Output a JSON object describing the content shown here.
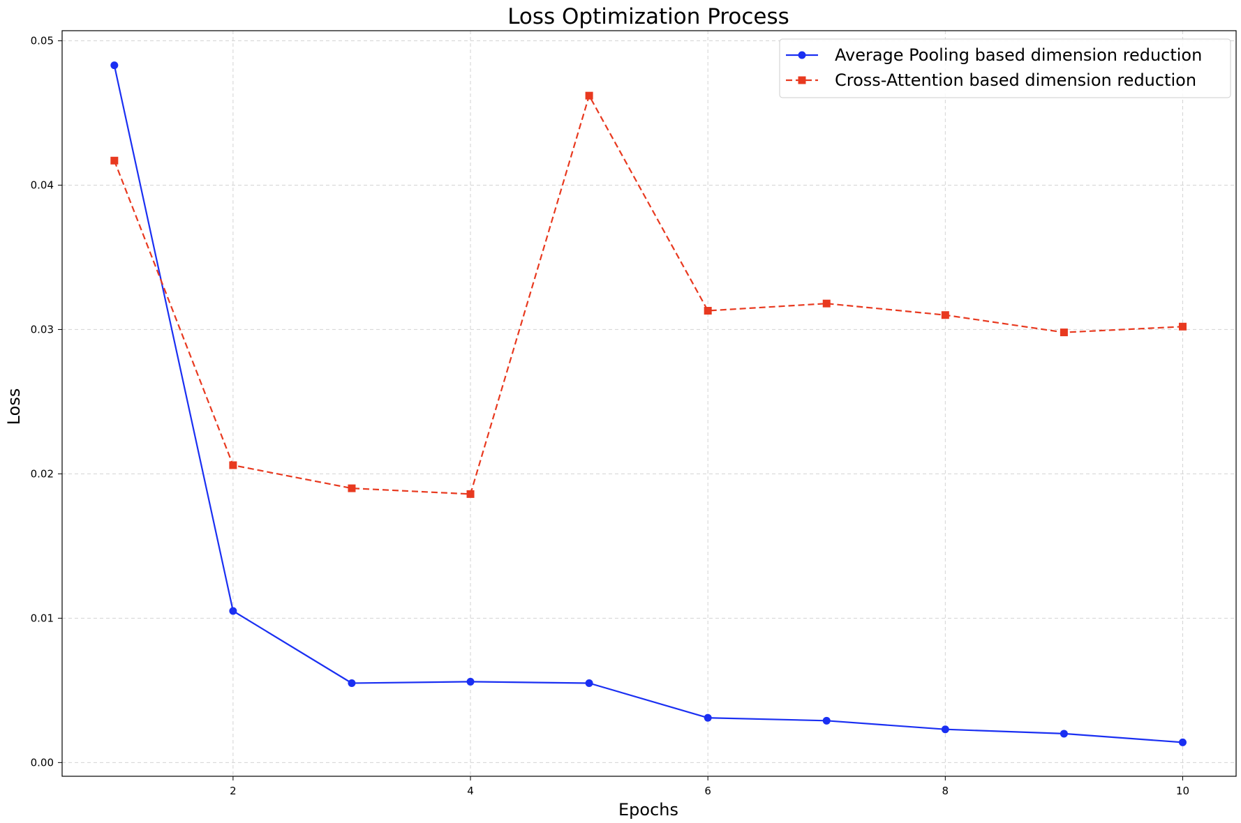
{
  "chart_data": {
    "type": "line",
    "title": "Loss Optimization Process",
    "xlabel": "Epochs",
    "ylabel": "Loss",
    "x": [
      1,
      2,
      3,
      4,
      5,
      6,
      7,
      8,
      9,
      10
    ],
    "xlim": [
      0.56,
      10.45
    ],
    "ylim": [
      -0.00095,
      0.0507
    ],
    "xticks": [
      2,
      4,
      6,
      8,
      10
    ],
    "xtick_labels": [
      "2",
      "4",
      "6",
      "8",
      "10"
    ],
    "yticks": [
      0.0,
      0.01,
      0.02,
      0.03,
      0.04,
      0.05
    ],
    "ytick_labels": [
      "0.00",
      "0.01",
      "0.02",
      "0.03",
      "0.04",
      "0.05"
    ],
    "grid": true,
    "legend_position": "top-right",
    "series": [
      {
        "name": "Average Pooling based dimension reduction",
        "values": [
          0.0483,
          0.0105,
          0.0055,
          0.0056,
          0.0055,
          0.0031,
          0.0029,
          0.0023,
          0.002,
          0.0014
        ],
        "color": "#1a2ff2",
        "marker": "circle",
        "line_style": "solid"
      },
      {
        "name": "Cross-Attention based dimension reduction",
        "values": [
          0.0417,
          0.0206,
          0.019,
          0.0186,
          0.0462,
          0.0313,
          0.0318,
          0.031,
          0.0298,
          0.0302
        ],
        "color": "#e8391f",
        "marker": "square",
        "line_style": "dashed"
      }
    ]
  }
}
